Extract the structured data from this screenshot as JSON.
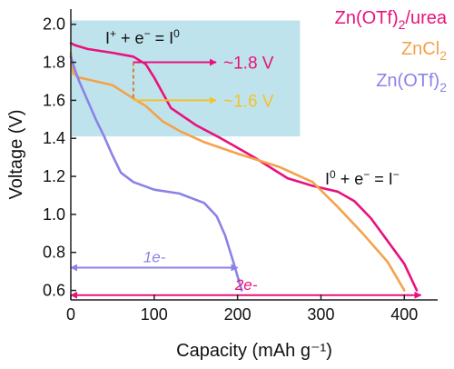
{
  "chart_data": {
    "type": "line",
    "title": "",
    "xlabel": "Capacity (mAh g⁻¹)",
    "ylabel": "Voltage (V)",
    "xlim": [
      0,
      440
    ],
    "ylim": [
      0.55,
      2.08
    ],
    "xticks": [
      0,
      100,
      200,
      300,
      400
    ],
    "yticks": [
      0.6,
      0.8,
      1.0,
      1.2,
      1.4,
      1.6,
      1.8,
      2.0
    ],
    "tick_labels_x": [
      "0",
      "100",
      "200",
      "300",
      "400"
    ],
    "tick_labels_y": [
      "0.6",
      "0.8",
      "1.0",
      "1.2",
      "1.4",
      "1.6",
      "1.8",
      "2.0"
    ],
    "grid": false,
    "highlight_region": {
      "x": [
        0,
        275
      ],
      "y": [
        1.41,
        2.02
      ],
      "color": "#bfe3ec"
    },
    "series": [
      {
        "name": "Zn(OTf)₂/urea",
        "color": "#e8127c",
        "x": [
          0,
          5,
          20,
          50,
          75,
          90,
          100,
          110,
          120,
          150,
          180,
          220,
          260,
          290,
          320,
          340,
          360,
          380,
          400,
          415
        ],
        "y": [
          1.9,
          1.89,
          1.87,
          1.85,
          1.83,
          1.79,
          1.72,
          1.64,
          1.56,
          1.47,
          1.4,
          1.3,
          1.19,
          1.15,
          1.12,
          1.07,
          0.98,
          0.86,
          0.74,
          0.6
        ]
      },
      {
        "name": "ZnCl₂",
        "color": "#f4a24a",
        "x": [
          0,
          3,
          10,
          20,
          50,
          75,
          90,
          110,
          130,
          160,
          200,
          250,
          290,
          320,
          350,
          380,
          400
        ],
        "y": [
          1.85,
          1.74,
          1.72,
          1.71,
          1.68,
          1.61,
          1.57,
          1.49,
          1.44,
          1.38,
          1.32,
          1.25,
          1.17,
          1.04,
          0.9,
          0.75,
          0.6
        ]
      },
      {
        "name": "Zn(OTf)₂",
        "color": "#8b82e8",
        "x": [
          0,
          5,
          10,
          20,
          30,
          40,
          50,
          60,
          75,
          100,
          130,
          160,
          175,
          185,
          195,
          205
        ],
        "y": [
          1.83,
          1.76,
          1.7,
          1.6,
          1.5,
          1.41,
          1.31,
          1.22,
          1.17,
          1.13,
          1.11,
          1.06,
          0.99,
          0.89,
          0.75,
          0.6
        ]
      }
    ],
    "annotations": {
      "reaction_1": {
        "pre": "I",
        "sup1": "+",
        "mid": " + e",
        "sup2": "−",
        "post": " = I",
        "sup3": "0"
      },
      "reaction_2": {
        "pre": "I",
        "sup1": "0",
        "mid": " + e",
        "sup2": "−",
        "post": " = I",
        "sup3": "−"
      },
      "level_high": {
        "label": "~1.8 V",
        "voltage": 1.8,
        "color": "#e8127c"
      },
      "level_low": {
        "label": "~1.6 V",
        "voltage": 1.6,
        "color": "#f4c12b"
      },
      "marker_x": 75,
      "span_1e": {
        "label": "1e-",
        "x": [
          0,
          200
        ],
        "y": 0.72,
        "color": "#8b82e8"
      },
      "span_2e": {
        "label": "2e-",
        "x": [
          0,
          420
        ],
        "y": 0.575,
        "color": "#e8127c"
      }
    },
    "legend": [
      {
        "base": "Zn(OTf)",
        "sub": "2",
        "tail": "/urea",
        "color": "#e8127c"
      },
      {
        "base": "ZnCl",
        "sub": "2",
        "tail": "",
        "color": "#f4a24a"
      },
      {
        "base": "Zn(OTf)",
        "sub": "2",
        "tail": "",
        "color": "#8b82e8"
      }
    ]
  }
}
